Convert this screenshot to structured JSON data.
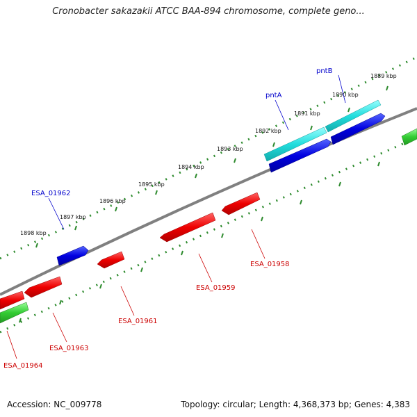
{
  "title": "Cronobacter sakazakii ATCC BAA-894 chromosome, complete geno...",
  "footer": {
    "accession": "Accession: NC_009778",
    "summary": "Topology: circular; Length: 4,368,373 bp; Genes: 4,383"
  },
  "colors": {
    "backbone": "#808080",
    "tick": "#2e8b2e",
    "forward_gene": "#0000dd",
    "reverse_gene": "#ee1111",
    "named_gene": "#22dddd",
    "rna_gene": "#33cc33",
    "forward_label": "#0000cc",
    "reverse_label": "#cc0000"
  },
  "kbp_labels": [
    "1889 kbp",
    "1890 kbp",
    "1891 kbp",
    "1892 kbp",
    "1893 kbp",
    "1894 kbp",
    "1895 kbp",
    "1896 kbp",
    "1897 kbp",
    "1898 kbp"
  ],
  "gene_labels": {
    "pntB": "pntB",
    "pntA": "pntA",
    "ESA_01962": "ESA_01962",
    "ESA_01958": "ESA_01958",
    "ESA_01959": "ESA_01959",
    "ESA_01961": "ESA_01961",
    "ESA_01963": "ESA_01963",
    "ESA_01964": "ESA_01964"
  }
}
